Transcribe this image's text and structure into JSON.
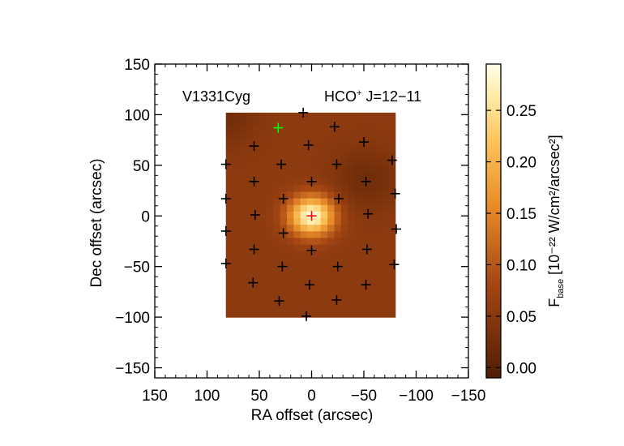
{
  "chart_data": {
    "type": "heatmap",
    "annotations": {
      "object": "V1331Cyg",
      "line_prefix": "HCO",
      "line_sup": "+",
      "line_suffix": " J=12−11"
    },
    "xlabel": "RA offset (arcsec)",
    "ylabel": "Dec offset (arcsec)",
    "xlim": [
      150,
      -150
    ],
    "ylim": [
      -160,
      150
    ],
    "xticks": [
      150,
      100,
      50,
      0,
      -50,
      -100,
      -150
    ],
    "yticks": [
      150,
      100,
      50,
      0,
      -50,
      -100,
      -150
    ],
    "xtick_labels": [
      "150",
      "100",
      "50",
      "0",
      "−50",
      "−100",
      "−150"
    ],
    "ytick_labels": [
      "150",
      "100",
      "50",
      "0",
      "−50",
      "−100",
      "−150"
    ],
    "map_extent": {
      "x": [
        82,
        -80
      ],
      "y": [
        -100,
        102
      ]
    },
    "colorbar": {
      "range": [
        -0.01,
        0.295
      ],
      "ticks": [
        0.0,
        0.05,
        0.1,
        0.15,
        0.2,
        0.25
      ],
      "tick_labels": [
        "0.00",
        "0.05",
        "0.10",
        "0.15",
        "0.20",
        "0.25"
      ],
      "label_main": "F",
      "label_sub": "base",
      "label_rest": " [10⁻²² W/cm²/arcsec²]"
    },
    "emission": {
      "background": 0.055,
      "peak": 0.29,
      "peak_x": 0,
      "peak_y": 0,
      "fwhm": 32,
      "dark_spots": [
        {
          "x": -52,
          "y": 36,
          "depth": 0.03
        },
        {
          "x": 85,
          "y": 100,
          "depth": 0.03
        }
      ]
    },
    "pixels": [
      {
        "x": 0,
        "y": 0,
        "color": "#ff0000"
      },
      {
        "x": 32,
        "y": 87,
        "color": "#00ff00"
      },
      {
        "x": 8,
        "y": 102,
        "color": "#000000"
      },
      {
        "x": -22,
        "y": 88,
        "color": "#000000"
      },
      {
        "x": 55,
        "y": 69,
        "color": "#000000"
      },
      {
        "x": 3,
        "y": 70,
        "color": "#000000"
      },
      {
        "x": -50,
        "y": 73,
        "color": "#000000"
      },
      {
        "x": -77,
        "y": 55,
        "color": "#000000"
      },
      {
        "x": 82,
        "y": 51,
        "color": "#000000"
      },
      {
        "x": 29,
        "y": 51,
        "color": "#000000"
      },
      {
        "x": -24,
        "y": 51,
        "color": "#000000"
      },
      {
        "x": 55,
        "y": 34,
        "color": "#000000"
      },
      {
        "x": 0,
        "y": 34,
        "color": "#000000"
      },
      {
        "x": -52,
        "y": 34,
        "color": "#000000"
      },
      {
        "x": 82,
        "y": 17,
        "color": "#000000"
      },
      {
        "x": 27,
        "y": 17,
        "color": "#000000"
      },
      {
        "x": -26,
        "y": 17,
        "color": "#000000"
      },
      {
        "x": -80,
        "y": 22,
        "color": "#000000"
      },
      {
        "x": 54,
        "y": 1,
        "color": "#000000"
      },
      {
        "x": -54,
        "y": 2,
        "color": "#000000"
      },
      {
        "x": 82,
        "y": -15,
        "color": "#000000"
      },
      {
        "x": 27,
        "y": -17,
        "color": "#000000"
      },
      {
        "x": -81,
        "y": -13,
        "color": "#000000"
      },
      {
        "x": 55,
        "y": -33,
        "color": "#000000"
      },
      {
        "x": 0,
        "y": -34,
        "color": "#000000"
      },
      {
        "x": -53,
        "y": -33,
        "color": "#000000"
      },
      {
        "x": 82,
        "y": -47,
        "color": "#000000"
      },
      {
        "x": 28,
        "y": -50,
        "color": "#000000"
      },
      {
        "x": -25,
        "y": -50,
        "color": "#000000"
      },
      {
        "x": -79,
        "y": -48,
        "color": "#000000"
      },
      {
        "x": 56,
        "y": -66,
        "color": "#000000"
      },
      {
        "x": 2,
        "y": -68,
        "color": "#000000"
      },
      {
        "x": -52,
        "y": -68,
        "color": "#000000"
      },
      {
        "x": 31,
        "y": -84,
        "color": "#000000"
      },
      {
        "x": -24,
        "y": -83,
        "color": "#000000"
      },
      {
        "x": 5,
        "y": -99,
        "color": "#000000"
      }
    ]
  }
}
